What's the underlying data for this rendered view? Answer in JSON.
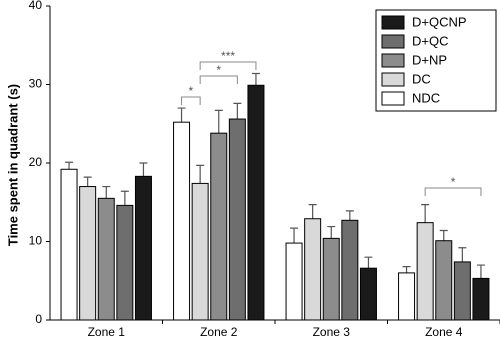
{
  "chart_data": {
    "type": "bar",
    "y_label": "Time spent in quadrant (s)",
    "categories": [
      "Zone 1",
      "Zone 2",
      "Zone 3",
      "Zone 4"
    ],
    "series": [
      {
        "name": "NDC",
        "color": "#ffffff",
        "values": [
          19.2,
          25.2,
          9.8,
          6.0
        ],
        "errors": [
          0.9,
          1.8,
          1.9,
          0.8
        ]
      },
      {
        "name": "DC",
        "color": "#d9d9d9",
        "values": [
          17.0,
          17.4,
          12.9,
          12.4
        ],
        "errors": [
          1.2,
          2.3,
          1.8,
          2.3
        ]
      },
      {
        "name": "D+NP",
        "color": "#8c8c8c",
        "values": [
          15.5,
          23.8,
          10.4,
          10.1
        ],
        "errors": [
          1.5,
          2.9,
          1.5,
          1.3
        ]
      },
      {
        "name": "D+QC",
        "color": "#6e6e6e",
        "values": [
          14.6,
          25.6,
          12.7,
          7.4
        ],
        "errors": [
          1.8,
          2.0,
          1.2,
          1.8
        ]
      },
      {
        "name": "D+QCNP",
        "color": "#1a1a1a",
        "values": [
          18.3,
          29.9,
          6.6,
          5.3
        ],
        "errors": [
          1.7,
          1.5,
          1.4,
          1.7
        ]
      }
    ],
    "ylim": [
      0,
      40
    ],
    "yticks": [
      0,
      10,
      20,
      30,
      40
    ],
    "legend": "top-right",
    "annotations": [
      "*",
      "*",
      "***",
      "*"
    ]
  }
}
